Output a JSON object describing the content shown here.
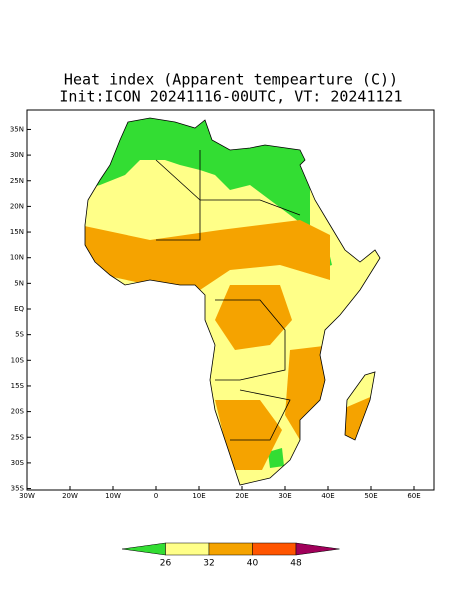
{
  "title": [
    "Heat index (Apparent tempearture (C))",
    "Init:ICON 20241116-00UTC, VT: 20241121"
  ],
  "map": {
    "lon_ticks": [
      {
        "value": -30,
        "label": "30W"
      },
      {
        "value": -20,
        "label": "20W"
      },
      {
        "value": -10,
        "label": "10W"
      },
      0,
      {
        "value": 10,
        "label": "10E"
      },
      {
        "value": 20,
        "label": "20E"
      },
      {
        "value": 30,
        "label": "30E"
      },
      {
        "value": 40,
        "label": "40E"
      },
      {
        "value": 50,
        "label": "50E"
      },
      {
        "value": 60,
        "label": "60E"
      }
    ],
    "lat_ticks": [
      {
        "value": 35,
        "label": "35N"
      },
      {
        "value": 30,
        "label": "30N"
      },
      {
        "value": 25,
        "label": "25N"
      },
      {
        "value": 20,
        "label": "20N"
      },
      {
        "value": 15,
        "label": "15N"
      },
      {
        "value": 10,
        "label": "10N"
      },
      {
        "value": 5,
        "label": "5N"
      },
      {
        "value": 0,
        "label": "EQ"
      },
      {
        "value": -5,
        "label": "5S"
      },
      {
        "value": -10,
        "label": "10S"
      },
      {
        "value": -15,
        "label": "15S"
      },
      {
        "value": -20,
        "label": "20S"
      },
      {
        "value": -25,
        "label": "25S"
      },
      {
        "value": -30,
        "label": "30S"
      },
      {
        "value": -35,
        "label": "35S"
      }
    ]
  },
  "colorbar": {
    "levels": [
      26,
      32,
      40,
      48
    ],
    "colors": [
      "#33dd33",
      "#ffff88",
      "#f5a300",
      "#ff5500",
      "#a0005a"
    ]
  }
}
